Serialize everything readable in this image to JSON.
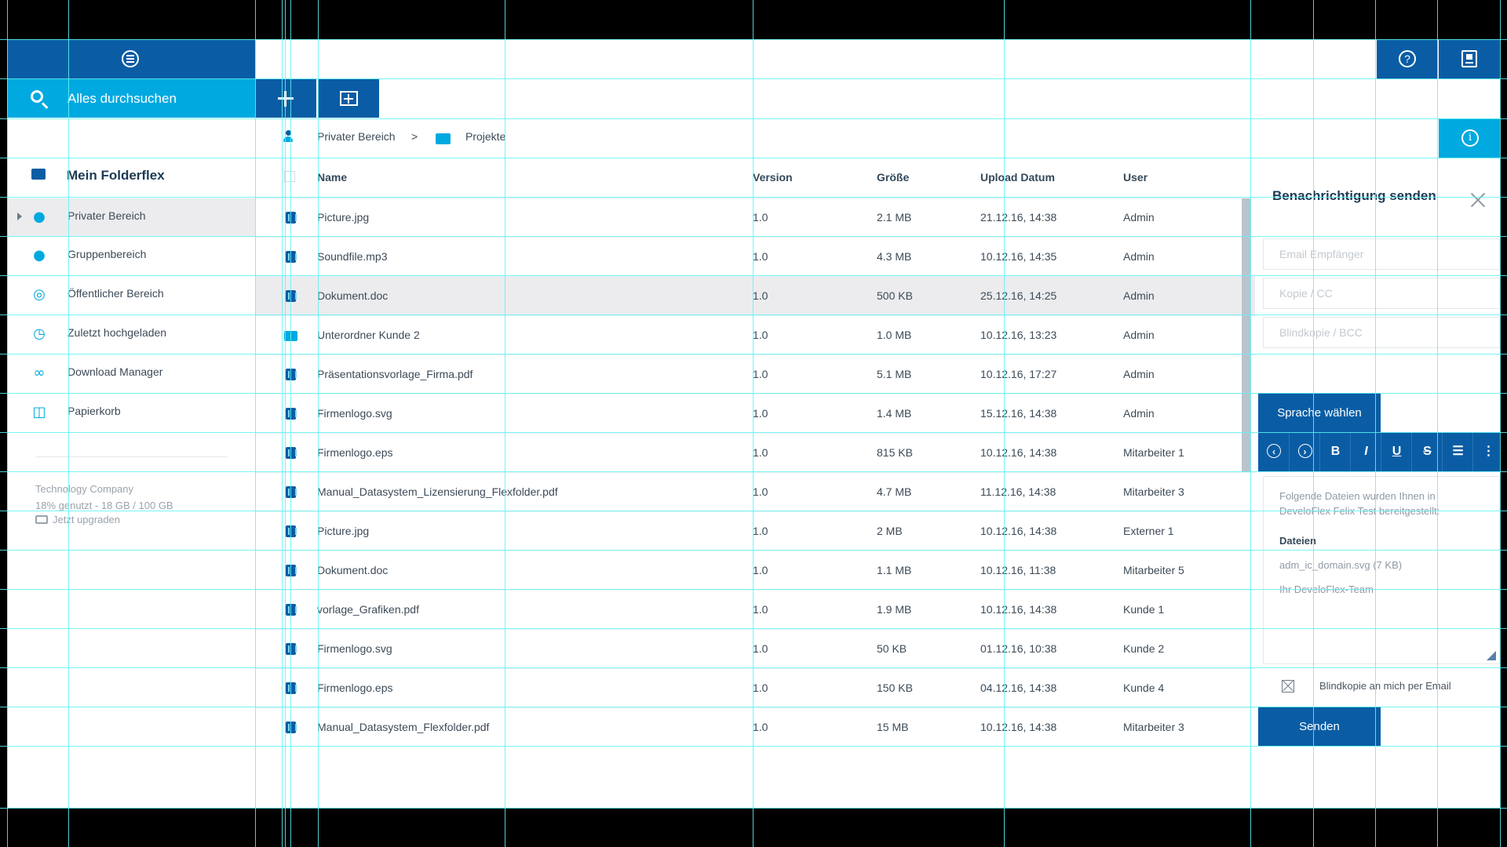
{
  "search": {
    "placeholder": "Alles durchsuchen"
  },
  "breadcrumb": {
    "root": "Privater Bereich",
    "separator": ">",
    "current": "Projekte"
  },
  "sidebar": {
    "title": "Mein Folderflex",
    "items": [
      {
        "label": "Privater Bereich",
        "icon": "user-icon",
        "active": true
      },
      {
        "label": "Gruppenbereich",
        "icon": "group-icon"
      },
      {
        "label": "Öffentlicher Bereich",
        "icon": "globe-icon"
      },
      {
        "label": "Zuletzt hochgeladen",
        "icon": "clock-icon"
      },
      {
        "label": "Download Manager",
        "icon": "link-icon"
      },
      {
        "label": "Papierkorb",
        "icon": "trash-icon"
      }
    ],
    "company": "Technology Company",
    "usage": "18% genutzt - 18 GB / 100 GB",
    "upgrade": "Jetzt upgraden"
  },
  "table": {
    "headers": {
      "name": "Name",
      "version": "Version",
      "size": "Größe",
      "date": "Upload Datum",
      "user": "User"
    },
    "rows": [
      {
        "name": "Picture.jpg",
        "version": "1.0",
        "size": "2.1 MB",
        "date": "21.12.16, 14:38",
        "user": "Admin",
        "type": "file"
      },
      {
        "name": "Soundfile.mp3",
        "version": "1.0",
        "size": "4.3 MB",
        "date": "10.12.16, 14:35",
        "user": "Admin",
        "type": "file"
      },
      {
        "name": "Dokument.doc",
        "version": "1.0",
        "size": "500 KB",
        "date": "25.12.16, 14:25",
        "user": "Admin",
        "type": "file",
        "highlighted": true
      },
      {
        "name": "Unterordner Kunde 2",
        "version": "1.0",
        "size": "1.0 MB",
        "date": "10.12.16, 13:23",
        "user": "Admin",
        "type": "folder"
      },
      {
        "name": "Präsentationsvorlage_Firma.pdf",
        "version": "1.0",
        "size": "5.1 MB",
        "date": "10.12.16, 17:27",
        "user": "Admin",
        "type": "file"
      },
      {
        "name": "Firmenlogo.svg",
        "version": "1.0",
        "size": "1.4 MB",
        "date": "15.12.16, 14:38",
        "user": "Admin",
        "type": "file"
      },
      {
        "name": "Firmenlogo.eps",
        "version": "1.0",
        "size": "815 KB",
        "date": "10.12.16, 14:38",
        "user": "Mitarbeiter 1",
        "type": "file"
      },
      {
        "name": "Manual_Datasystem_Lizensierung_Flexfolder.pdf",
        "version": "1.0",
        "size": "4.7 MB",
        "date": "11.12.16, 14:38",
        "user": "Mitarbeiter 3",
        "type": "file"
      },
      {
        "name": "Picture.jpg",
        "version": "1.0",
        "size": "2 MB",
        "date": "10.12.16, 14:38",
        "user": "Externer 1",
        "type": "file"
      },
      {
        "name": "Dokument.doc",
        "version": "1.0",
        "size": "1.1 MB",
        "date": "10.12.16, 11:38",
        "user": "Mitarbeiter 5",
        "type": "file"
      },
      {
        "name": "vorlage_Grafiken.pdf",
        "version": "1.0",
        "size": "1.9 MB",
        "date": "10.12.16, 14:38",
        "user": "Kunde 1",
        "type": "file"
      },
      {
        "name": "Firmenlogo.svg",
        "version": "1.0",
        "size": "50 KB",
        "date": "01.12.16, 10:38",
        "user": "Kunde 2",
        "type": "file"
      },
      {
        "name": "Firmenlogo.eps",
        "version": "1.0",
        "size": "150 KB",
        "date": "04.12.16, 14:38",
        "user": "Kunde 4",
        "type": "file"
      },
      {
        "name": "Manual_Datasystem_Flexfolder.pdf",
        "version": "1.0",
        "size": "15 MB",
        "date": "10.12.16, 14:38",
        "user": "Mitarbeiter 3",
        "type": "file"
      }
    ]
  },
  "notify": {
    "title": "Benachrichtigung senden",
    "to_placeholder": "Email Empfänger",
    "cc_placeholder": "Kopie / CC",
    "bcc_placeholder": "Blindkopie / BCC",
    "language_button": "Sprache wählen",
    "editor_buttons": {
      "bold": "B",
      "italic": "I",
      "underline": "U",
      "strike": "S"
    },
    "body": {
      "intro": "Folgende Dateien wurden Ihnen in DeveloFlex Felix Test bereitgestellt:",
      "files_heading": "Dateien",
      "file": "adm_ic_domain.svg (7 KB)",
      "signature": "Ihr DeveloFlex-Team"
    },
    "bcc_self_label": "Blindkopie an mich per Email",
    "send_button": "Senden"
  },
  "colors": {
    "primary": "#0a5da4",
    "accent": "#00a9e0",
    "guide": "#5ff3f3"
  }
}
